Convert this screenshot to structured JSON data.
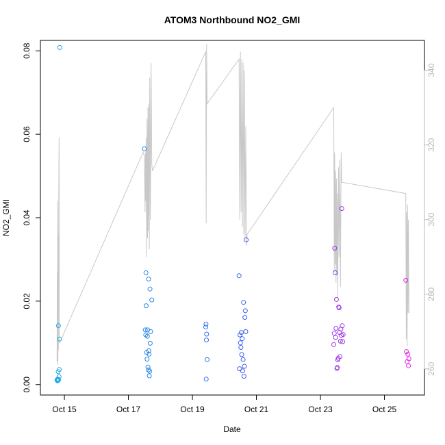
{
  "chart_data": {
    "type": "scatter",
    "title": "ATOM3 Northbound NO2_GMI",
    "xlabel": "Date",
    "ylabel": "NO2_GMI",
    "x_axis": {
      "kind": "date",
      "range": [
        "2017-10-14 06:00",
        "2017-10-26 06:00"
      ],
      "ticks": [
        {
          "label": "Oct 15",
          "date": "2017-10-15"
        },
        {
          "label": "Oct 17",
          "date": "2017-10-17"
        },
        {
          "label": "Oct 19",
          "date": "2017-10-19"
        },
        {
          "label": "Oct 21",
          "date": "2017-10-21"
        },
        {
          "label": "Oct 23",
          "date": "2017-10-23"
        },
        {
          "label": "Oct 25",
          "date": "2017-10-25"
        }
      ]
    },
    "y_left": {
      "range": [
        -0.0025,
        0.0825
      ],
      "ticks": [
        "0.00",
        "0.02",
        "0.04",
        "0.06",
        "0.08"
      ]
    },
    "y_right": {
      "range": [
        253,
        348
      ],
      "ticks": [
        "260",
        "280",
        "300",
        "320",
        "340"
      ],
      "color": "#b8b8b8"
    },
    "line_series": {
      "axis": "right",
      "color": "#c8c8c8",
      "points": [
        [
          "2017-10-14 18:30",
          262
        ],
        [
          "2017-10-14 18:40",
          286
        ],
        [
          "2017-10-14 18:50",
          261
        ],
        [
          "2017-10-14 19:00",
          305
        ],
        [
          "2017-10-14 19:10",
          262
        ],
        [
          "2017-10-14 19:20",
          296
        ],
        [
          "2017-10-14 19:30",
          265
        ],
        [
          "2017-10-14 19:45",
          307
        ],
        [
          "2017-10-14 20:00",
          322
        ],
        [
          "2017-10-14 20:10",
          268
        ],
        [
          "2017-10-14 20:30",
          267
        ],
        [
          "2017-10-17 11:00",
          318
        ],
        [
          "2017-10-17 12:00",
          317
        ],
        [
          "2017-10-17 12:30",
          302
        ],
        [
          "2017-10-17 12:45",
          318
        ],
        [
          "2017-10-17 13:00",
          305
        ],
        [
          "2017-10-17 13:20",
          322
        ],
        [
          "2017-10-17 13:40",
          290
        ],
        [
          "2017-10-17 14:00",
          327
        ],
        [
          "2017-10-17 14:20",
          295
        ],
        [
          "2017-10-17 14:40",
          330
        ],
        [
          "2017-10-17 15:00",
          297
        ],
        [
          "2017-10-17 15:20",
          331
        ],
        [
          "2017-10-17 15:40",
          292
        ],
        [
          "2017-10-17 16:00",
          338
        ],
        [
          "2017-10-17 16:30",
          300
        ],
        [
          "2017-10-17 17:00",
          342
        ],
        [
          "2017-10-17 17:30",
          315
        ],
        [
          "2017-10-17 18:00",
          313
        ],
        [
          "2017-10-19 10:00",
          345
        ],
        [
          "2017-10-19 10:20",
          299
        ],
        [
          "2017-10-19 10:40",
          347
        ],
        [
          "2017-10-19 11:00",
          331
        ],
        [
          "2017-10-20 11:00",
          343
        ],
        [
          "2017-10-20 11:30",
          300
        ],
        [
          "2017-10-20 12:00",
          345
        ],
        [
          "2017-10-20 12:30",
          302
        ],
        [
          "2017-10-20 13:00",
          343
        ],
        [
          "2017-10-20 13:30",
          298
        ],
        [
          "2017-10-20 14:00",
          342
        ],
        [
          "2017-10-20 14:30",
          296
        ],
        [
          "2017-10-20 15:00",
          340
        ],
        [
          "2017-10-20 15:30",
          295
        ],
        [
          "2017-10-20 16:00",
          325
        ],
        [
          "2017-10-20 16:30",
          293
        ],
        [
          "2017-10-20 17:00",
          296
        ],
        [
          "2017-10-23 10:00",
          330
        ],
        [
          "2017-10-23 10:20",
          286
        ],
        [
          "2017-10-23 10:40",
          318
        ],
        [
          "2017-10-23 11:00",
          288
        ],
        [
          "2017-10-23 11:20",
          313
        ],
        [
          "2017-10-23 11:40",
          283
        ],
        [
          "2017-10-23 12:00",
          311
        ],
        [
          "2017-10-23 12:20",
          285
        ],
        [
          "2017-10-23 12:40",
          307
        ],
        [
          "2017-10-23 13:00",
          279
        ],
        [
          "2017-10-23 13:30",
          314
        ],
        [
          "2017-10-23 14:00",
          290
        ],
        [
          "2017-10-23 14:30",
          316
        ],
        [
          "2017-10-23 15:00",
          282
        ],
        [
          "2017-10-23 15:30",
          318
        ],
        [
          "2017-10-23 16:00",
          310
        ],
        [
          "2017-10-25 16:00",
          307
        ],
        [
          "2017-10-25 16:20",
          268
        ],
        [
          "2017-10-25 16:40",
          302
        ],
        [
          "2017-10-25 17:00",
          266
        ],
        [
          "2017-10-25 17:20",
          304
        ],
        [
          "2017-10-25 17:40",
          275
        ],
        [
          "2017-10-25 18:00",
          300
        ],
        [
          "2017-10-25 18:20",
          275
        ]
      ]
    },
    "scatter_series": {
      "axis": "left",
      "marker": "open-circle",
      "color_gradient": [
        "#1fa9e6",
        "#2e62f0",
        "#e51ee5"
      ],
      "points": [
        [
          "2017-10-14 18:30",
          0.0011
        ],
        [
          "2017-10-14 18:40",
          0.0012
        ],
        [
          "2017-10-14 18:50",
          0.0009
        ],
        [
          "2017-10-14 19:00",
          0.0013
        ],
        [
          "2017-10-14 19:10",
          0.001
        ],
        [
          "2017-10-14 19:20",
          0.0031
        ],
        [
          "2017-10-14 19:30",
          0.0141
        ],
        [
          "2017-10-14 19:40",
          0.0012
        ],
        [
          "2017-10-14 20:00",
          0.0019
        ],
        [
          "2017-10-14 20:10",
          0.0036
        ],
        [
          "2017-10-14 20:20",
          0.0109
        ],
        [
          "2017-10-14 20:30",
          0.0808
        ],
        [
          "2017-10-17 12:00",
          0.0565
        ],
        [
          "2017-10-17 12:40",
          0.0131
        ],
        [
          "2017-10-17 13:00",
          0.0119
        ],
        [
          "2017-10-17 13:10",
          0.0268
        ],
        [
          "2017-10-17 13:20",
          0.0189
        ],
        [
          "2017-10-17 13:40",
          0.0077
        ],
        [
          "2017-10-17 14:00",
          0.0061
        ],
        [
          "2017-10-17 14:10",
          0.0116
        ],
        [
          "2017-10-17 14:20",
          0.0131
        ],
        [
          "2017-10-17 14:40",
          0.0042
        ],
        [
          "2017-10-17 15:00",
          0.0035
        ],
        [
          "2017-10-17 15:10",
          0.0253
        ],
        [
          "2017-10-17 15:20",
          0.0081
        ],
        [
          "2017-10-17 15:30",
          0.0073
        ],
        [
          "2017-10-17 15:40",
          0.0021
        ],
        [
          "2017-10-17 16:00",
          0.0032
        ],
        [
          "2017-10-17 16:10",
          0.0229
        ],
        [
          "2017-10-17 16:20",
          0.0099
        ],
        [
          "2017-10-17 16:40",
          0.0127
        ],
        [
          "2017-10-17 17:30",
          0.0203
        ],
        [
          "2017-10-19 10:00",
          0.0138
        ],
        [
          "2017-10-19 10:10",
          0.0145
        ],
        [
          "2017-10-19 10:20",
          0.0013
        ],
        [
          "2017-10-19 10:30",
          0.0107
        ],
        [
          "2017-10-19 10:40",
          0.0121
        ],
        [
          "2017-10-19 11:00",
          0.006
        ],
        [
          "2017-10-20 11:00",
          0.0261
        ],
        [
          "2017-10-20 11:20",
          0.0038
        ],
        [
          "2017-10-20 11:40",
          0.0119
        ],
        [
          "2017-10-20 12:00",
          0.01
        ],
        [
          "2017-10-20 12:20",
          0.0089
        ],
        [
          "2017-10-20 12:40",
          0.0125
        ],
        [
          "2017-10-20 13:00",
          0.0072
        ],
        [
          "2017-10-20 13:20",
          0.011
        ],
        [
          "2017-10-20 13:40",
          0.0033
        ],
        [
          "2017-10-20 14:00",
          0.006
        ],
        [
          "2017-10-20 14:20",
          0.0197
        ],
        [
          "2017-10-20 14:40",
          0.002
        ],
        [
          "2017-10-20 15:00",
          0.0044
        ],
        [
          "2017-10-20 15:20",
          0.0161
        ],
        [
          "2017-10-20 15:40",
          0.0177
        ],
        [
          "2017-10-20 16:00",
          0.0127
        ],
        [
          "2017-10-20 16:20",
          0.0347
        ],
        [
          "2017-10-23 10:00",
          0.0096
        ],
        [
          "2017-10-23 10:20",
          0.0123
        ],
        [
          "2017-10-23 10:40",
          0.0327
        ],
        [
          "2017-10-23 11:00",
          0.0268
        ],
        [
          "2017-10-23 11:20",
          0.0113
        ],
        [
          "2017-10-23 11:40",
          0.0135
        ],
        [
          "2017-10-23 12:00",
          0.0204
        ],
        [
          "2017-10-23 12:20",
          0.0039
        ],
        [
          "2017-10-23 12:40",
          0.0041
        ],
        [
          "2017-10-23 13:00",
          0.0059
        ],
        [
          "2017-10-23 13:20",
          0.0063
        ],
        [
          "2017-10-23 13:40",
          0.0186
        ],
        [
          "2017-10-23 14:00",
          0.0184
        ],
        [
          "2017-10-23 14:20",
          0.0125
        ],
        [
          "2017-10-23 14:40",
          0.0067
        ],
        [
          "2017-10-23 15:00",
          0.0104
        ],
        [
          "2017-10-23 15:20",
          0.0133
        ],
        [
          "2017-10-23 15:40",
          0.0118
        ],
        [
          "2017-10-23 16:00",
          0.0422
        ],
        [
          "2017-10-23 16:20",
          0.0141
        ],
        [
          "2017-10-23 16:40",
          0.0103
        ],
        [
          "2017-10-23 17:00",
          0.012
        ],
        [
          "2017-10-25 16:00",
          0.025
        ],
        [
          "2017-10-25 16:30",
          0.0079
        ],
        [
          "2017-10-25 17:00",
          0.0055
        ],
        [
          "2017-10-25 17:30",
          0.0073
        ],
        [
          "2017-10-25 18:00",
          0.0045
        ],
        [
          "2017-10-25 18:20",
          0.0062
        ]
      ]
    }
  }
}
